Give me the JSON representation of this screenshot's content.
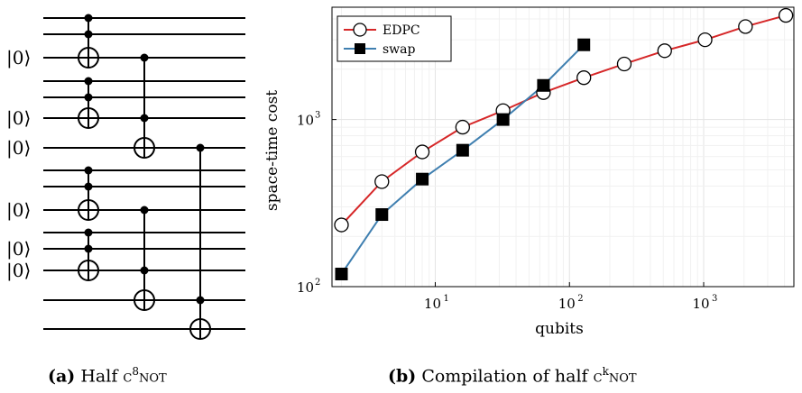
{
  "circuit": {
    "ket_label": "|0⟩",
    "caption": {
      "tag": "(a)",
      "text": "Half",
      "gate": "c",
      "superscript": "8",
      "gate_suffix": "not"
    }
  },
  "plot": {
    "caption": {
      "tag": "(b)",
      "text": "Compilation of half",
      "gate": "c",
      "superscript": "k",
      "gate_suffix": "not"
    }
  },
  "chart_data": {
    "type": "line",
    "title": "",
    "xlabel": "qubits",
    "ylabel": "space-time cost",
    "x_scale": "log10",
    "y_scale": "log10",
    "xlim": [
      1.7,
      4700
    ],
    "ylim": [
      100,
      4700
    ],
    "x_ticks": [
      {
        "value": 10,
        "base": "10",
        "exp": "1"
      },
      {
        "value": 100,
        "base": "10",
        "exp": "2"
      },
      {
        "value": 1000,
        "base": "10",
        "exp": "3"
      }
    ],
    "y_ticks": [
      {
        "value": 100,
        "base": "10",
        "exp": "2"
      },
      {
        "value": 1000,
        "base": "10",
        "exp": "3"
      }
    ],
    "grid": true,
    "legend_position": "top-left",
    "series": [
      {
        "name": "EDPC",
        "color": "#d62728",
        "marker": "open-circle",
        "x": [
          2,
          4,
          8,
          16,
          32,
          64,
          128,
          256,
          512,
          1024,
          2048,
          4096
        ],
        "y": [
          234,
          425,
          640,
          900,
          1130,
          1450,
          1780,
          2150,
          2580,
          3000,
          3600,
          4200
        ]
      },
      {
        "name": "swap",
        "color": "#3f7fb0",
        "marker": "filled-square",
        "x": [
          2,
          4,
          8,
          16,
          32,
          64,
          128
        ],
        "y": [
          119,
          270,
          440,
          655,
          1000,
          1600,
          2800
        ]
      }
    ]
  }
}
